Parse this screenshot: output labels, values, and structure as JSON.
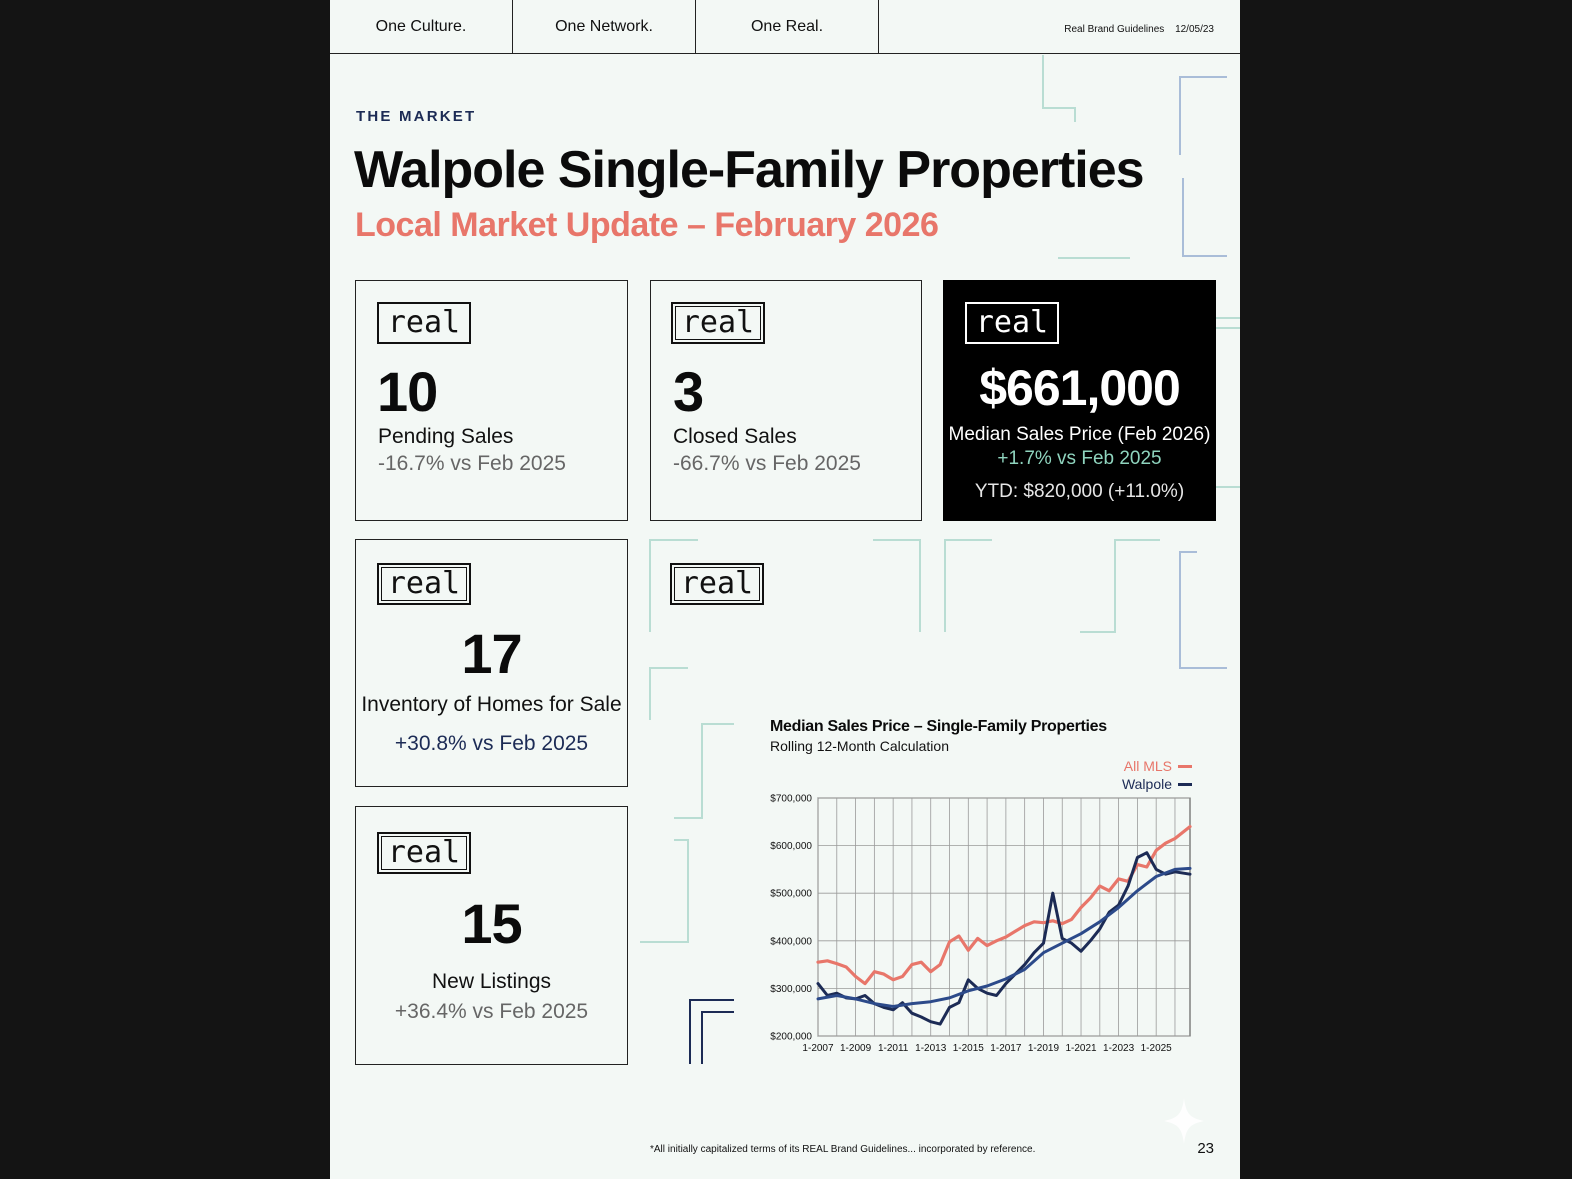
{
  "nav": {
    "items": [
      "One Culture.",
      "One Network.",
      "One Real."
    ],
    "meta_title": "Real Brand Guidelines",
    "meta_date": "12/05/23"
  },
  "header": {
    "eyebrow": "THE MARKET",
    "title": "Walpole Single-Family Properties",
    "subtitle": "Local Market Update – February 2026"
  },
  "brand": {
    "logo_text": "real",
    "accent": "#e8766a",
    "navy": "#1c2b55",
    "teal": "#a8d8cc"
  },
  "stats": {
    "pending": {
      "value": "10",
      "label": "Pending Sales",
      "delta": "-16.7% vs Feb 2025"
    },
    "closed": {
      "value": "3",
      "label": "Closed Sales",
      "delta": "-66.7% vs Feb 2025"
    },
    "median": {
      "value": "$661,000",
      "label": "Median Sales Price (Feb 2026)",
      "delta": "+1.7% vs Feb 2025",
      "ytd": "YTD: $820,000 (+11.0%)"
    },
    "inventory": {
      "value": "17",
      "label": "Inventory of Homes for Sale",
      "delta": "+30.8% vs Feb 2025"
    },
    "new_listings": {
      "value": "15",
      "label": "New Listings",
      "delta": "+36.4% vs Feb 2025"
    }
  },
  "chart_data": {
    "type": "line",
    "title": "Median Sales Price – Single-Family Properties",
    "subtitle": "Rolling 12-Month Calculation",
    "xlabel": "",
    "ylabel": "",
    "x_ticks": [
      "1-2007",
      "1-2009",
      "1-2011",
      "1-2013",
      "1-2015",
      "1-2017",
      "1-2019",
      "1-2021",
      "1-2023",
      "1-2025"
    ],
    "y_ticks": [
      "$200,000",
      "$300,000",
      "$400,000",
      "$500,000",
      "$600,000",
      "$700,000"
    ],
    "xlim": [
      2007,
      2026.8
    ],
    "ylim": [
      200000,
      700000
    ],
    "legend_position": "top-right",
    "grid": true,
    "series": [
      {
        "name": "All MLS",
        "color": "#e8766a",
        "x": [
          2007,
          2007.5,
          2008,
          2008.5,
          2009,
          2009.5,
          2010,
          2010.5,
          2011,
          2011.5,
          2012,
          2012.5,
          2013,
          2013.5,
          2014,
          2014.5,
          2015,
          2015.5,
          2016,
          2016.5,
          2017,
          2017.5,
          2018,
          2018.5,
          2019,
          2019.5,
          2020,
          2020.5,
          2021,
          2021.5,
          2022,
          2022.5,
          2023,
          2023.5,
          2024,
          2024.5,
          2025,
          2025.5,
          2026,
          2026.8
        ],
        "y": [
          355000,
          358000,
          352000,
          345000,
          325000,
          310000,
          335000,
          330000,
          318000,
          325000,
          350000,
          355000,
          335000,
          350000,
          398000,
          410000,
          380000,
          405000,
          390000,
          400000,
          408000,
          420000,
          432000,
          440000,
          438000,
          442000,
          436000,
          445000,
          470000,
          490000,
          515000,
          505000,
          530000,
          525000,
          560000,
          555000,
          590000,
          605000,
          615000,
          640000
        ]
      },
      {
        "name": "Walpole",
        "color": "#1c2b55",
        "x": [
          2007,
          2007.5,
          2008,
          2008.5,
          2009,
          2009.5,
          2010,
          2010.5,
          2011,
          2011.5,
          2012,
          2012.5,
          2013,
          2013.5,
          2014,
          2014.5,
          2015,
          2015.5,
          2016,
          2016.5,
          2017,
          2017.5,
          2018,
          2018.5,
          2019,
          2019.5,
          2020,
          2020.5,
          2021,
          2021.5,
          2022,
          2022.5,
          2023,
          2023.5,
          2024,
          2024.5,
          2025,
          2025.5,
          2026,
          2026.8
        ],
        "y": [
          310000,
          285000,
          290000,
          280000,
          278000,
          285000,
          268000,
          260000,
          255000,
          270000,
          248000,
          240000,
          230000,
          225000,
          260000,
          270000,
          318000,
          300000,
          290000,
          285000,
          310000,
          330000,
          350000,
          375000,
          395000,
          500000,
          405000,
          395000,
          378000,
          400000,
          425000,
          460000,
          475000,
          515000,
          575000,
          585000,
          550000,
          540000,
          545000,
          540000
        ]
      },
      {
        "name": "",
        "color": "#2c4a8a",
        "x": [
          2007,
          2008,
          2009,
          2010,
          2011,
          2012,
          2013,
          2014,
          2015,
          2016,
          2017,
          2018,
          2019,
          2020,
          2021,
          2022,
          2023,
          2024,
          2025,
          2026,
          2026.8
        ],
        "y": [
          278000,
          285000,
          278000,
          268000,
          262000,
          268000,
          272000,
          280000,
          295000,
          305000,
          320000,
          340000,
          375000,
          395000,
          415000,
          440000,
          470000,
          505000,
          535000,
          550000,
          552000
        ]
      }
    ]
  }
}
